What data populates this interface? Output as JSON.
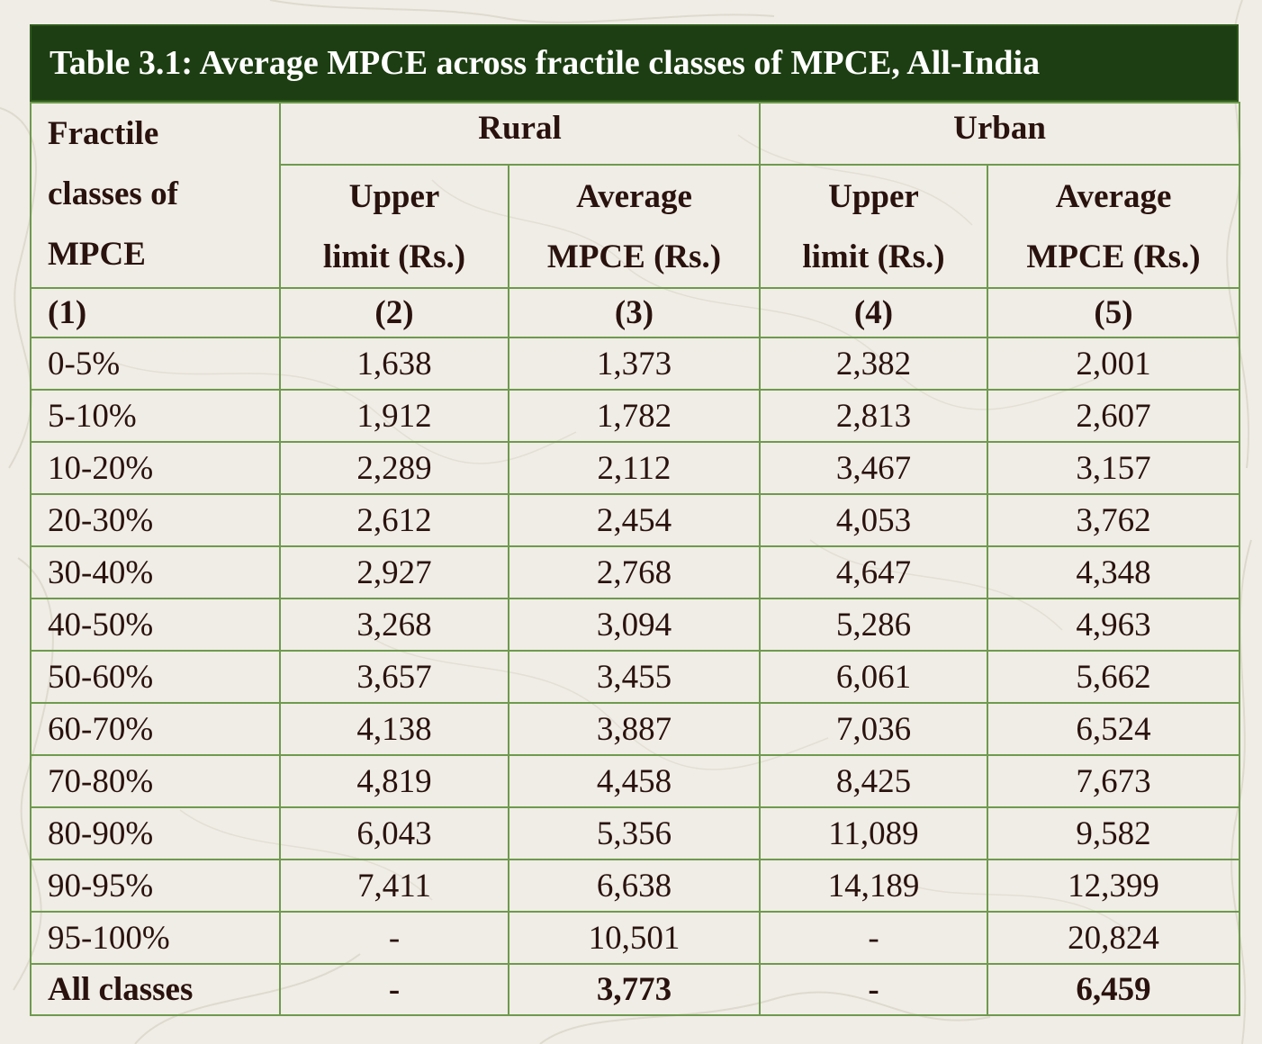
{
  "title": "Table 3.1: Average MPCE across fractile classes of MPCE, All-India",
  "header": {
    "fractile_line1": "Fractile",
    "fractile_line2": "classes of",
    "fractile_line3": "MPCE",
    "rural": "Rural",
    "urban": "Urban",
    "upper_line1": "Upper",
    "upper_line2": "limit (Rs.)",
    "average_line1": "Average",
    "average_line2": "MPCE (Rs.)",
    "col_numbers": [
      "(1)",
      "(2)",
      "(3)",
      "(4)",
      "(5)"
    ]
  },
  "rows": [
    {
      "class": "0-5%",
      "rural_upper": "1,638",
      "rural_avg": "1,373",
      "urban_upper": "2,382",
      "urban_avg": "2,001"
    },
    {
      "class": "5-10%",
      "rural_upper": "1,912",
      "rural_avg": "1,782",
      "urban_upper": "2,813",
      "urban_avg": "2,607"
    },
    {
      "class": "10-20%",
      "rural_upper": "2,289",
      "rural_avg": "2,112",
      "urban_upper": "3,467",
      "urban_avg": "3,157"
    },
    {
      "class": "20-30%",
      "rural_upper": "2,612",
      "rural_avg": "2,454",
      "urban_upper": "4,053",
      "urban_avg": "3,762"
    },
    {
      "class": "30-40%",
      "rural_upper": "2,927",
      "rural_avg": "2,768",
      "urban_upper": "4,647",
      "urban_avg": "4,348"
    },
    {
      "class": "40-50%",
      "rural_upper": "3,268",
      "rural_avg": "3,094",
      "urban_upper": "5,286",
      "urban_avg": "4,963"
    },
    {
      "class": "50-60%",
      "rural_upper": "3,657",
      "rural_avg": "3,455",
      "urban_upper": "6,061",
      "urban_avg": "5,662"
    },
    {
      "class": "60-70%",
      "rural_upper": "4,138",
      "rural_avg": "3,887",
      "urban_upper": "7,036",
      "urban_avg": "6,524"
    },
    {
      "class": "70-80%",
      "rural_upper": "4,819",
      "rural_avg": "4,458",
      "urban_upper": "8,425",
      "urban_avg": "7,673"
    },
    {
      "class": "80-90%",
      "rural_upper": "6,043",
      "rural_avg": "5,356",
      "urban_upper": "11,089",
      "urban_avg": "9,582"
    },
    {
      "class": "90-95%",
      "rural_upper": "7,411",
      "rural_avg": "6,638",
      "urban_upper": "14,189",
      "urban_avg": "12,399"
    },
    {
      "class": "95-100%",
      "rural_upper": "-",
      "rural_avg": "10,501",
      "urban_upper": "-",
      "urban_avg": "20,824"
    }
  ],
  "total": {
    "class": "All classes",
    "rural_upper": "-",
    "rural_avg": "3,773",
    "urban_upper": "-",
    "urban_avg": "6,459"
  },
  "colors": {
    "title_bg": "#1d3e12",
    "title_text": "#ffffff",
    "border": "#6e9a4e",
    "text": "#2a120e",
    "background": "#f0ede6"
  }
}
